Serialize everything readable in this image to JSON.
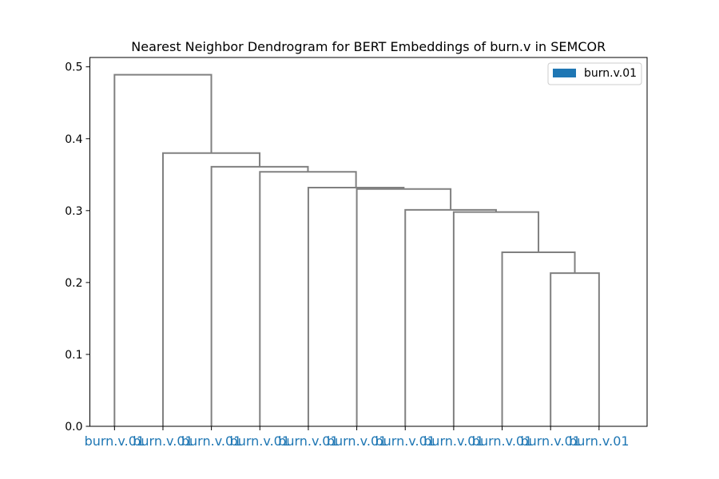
{
  "chart_data": {
    "type": "dendrogram",
    "title": "Nearest Neighbor Dendrogram for BERT Embeddings of burn.v in SEMCOR",
    "xlabel": "",
    "ylabel": "",
    "ylim": [
      0,
      0.513
    ],
    "yticks": [
      0.0,
      0.1,
      0.2,
      0.3,
      0.4,
      0.5
    ],
    "ytick_labels": [
      "0.0",
      "0.1",
      "0.2",
      "0.3",
      "0.4",
      "0.5"
    ],
    "grid": false,
    "legend": {
      "position": "top-right",
      "entries": [
        {
          "label": "burn.v.01",
          "color": "#1f77b4"
        }
      ]
    },
    "link_color": "#808080",
    "leaf_label_color": "#1f77b4",
    "leaves": [
      "burn.v.01",
      "burn.v.01",
      "burn.v.01",
      "burn.v.01",
      "burn.v.01",
      "burn.v.01",
      "burn.v.01",
      "burn.v.01",
      "burn.v.01",
      "burn.v.01",
      "burn.v.01"
    ],
    "links": [
      {
        "x1": 9.5,
        "y1": 0.0,
        "x2": 10.5,
        "y2": 0.0,
        "height": 0.213
      },
      {
        "x1": 8.5,
        "y1": 0.0,
        "x2": 10.0,
        "y2": 0.213,
        "height": 0.242
      },
      {
        "x1": 7.5,
        "y1": 0.0,
        "x2": 9.25,
        "y2": 0.242,
        "height": 0.298
      },
      {
        "x1": 6.5,
        "y1": 0.0,
        "x2": 8.375,
        "y2": 0.298,
        "height": 0.301
      },
      {
        "x1": 5.5,
        "y1": 0.0,
        "x2": 7.4375,
        "y2": 0.301,
        "height": 0.33
      },
      {
        "x1": 4.5,
        "y1": 0.0,
        "x2": 6.46875,
        "y2": 0.33,
        "height": 0.332
      },
      {
        "x1": 3.5,
        "y1": 0.0,
        "x2": 5.484375,
        "y2": 0.332,
        "height": 0.354
      },
      {
        "x1": 2.5,
        "y1": 0.0,
        "x2": 4.4921875,
        "y2": 0.354,
        "height": 0.361
      },
      {
        "x1": 1.5,
        "y1": 0.0,
        "x2": 3.49609375,
        "y2": 0.361,
        "height": 0.38
      },
      {
        "x1": 0.5,
        "y1": 0.0,
        "x2": 2.498046875,
        "y2": 0.38,
        "height": 0.489
      }
    ]
  }
}
